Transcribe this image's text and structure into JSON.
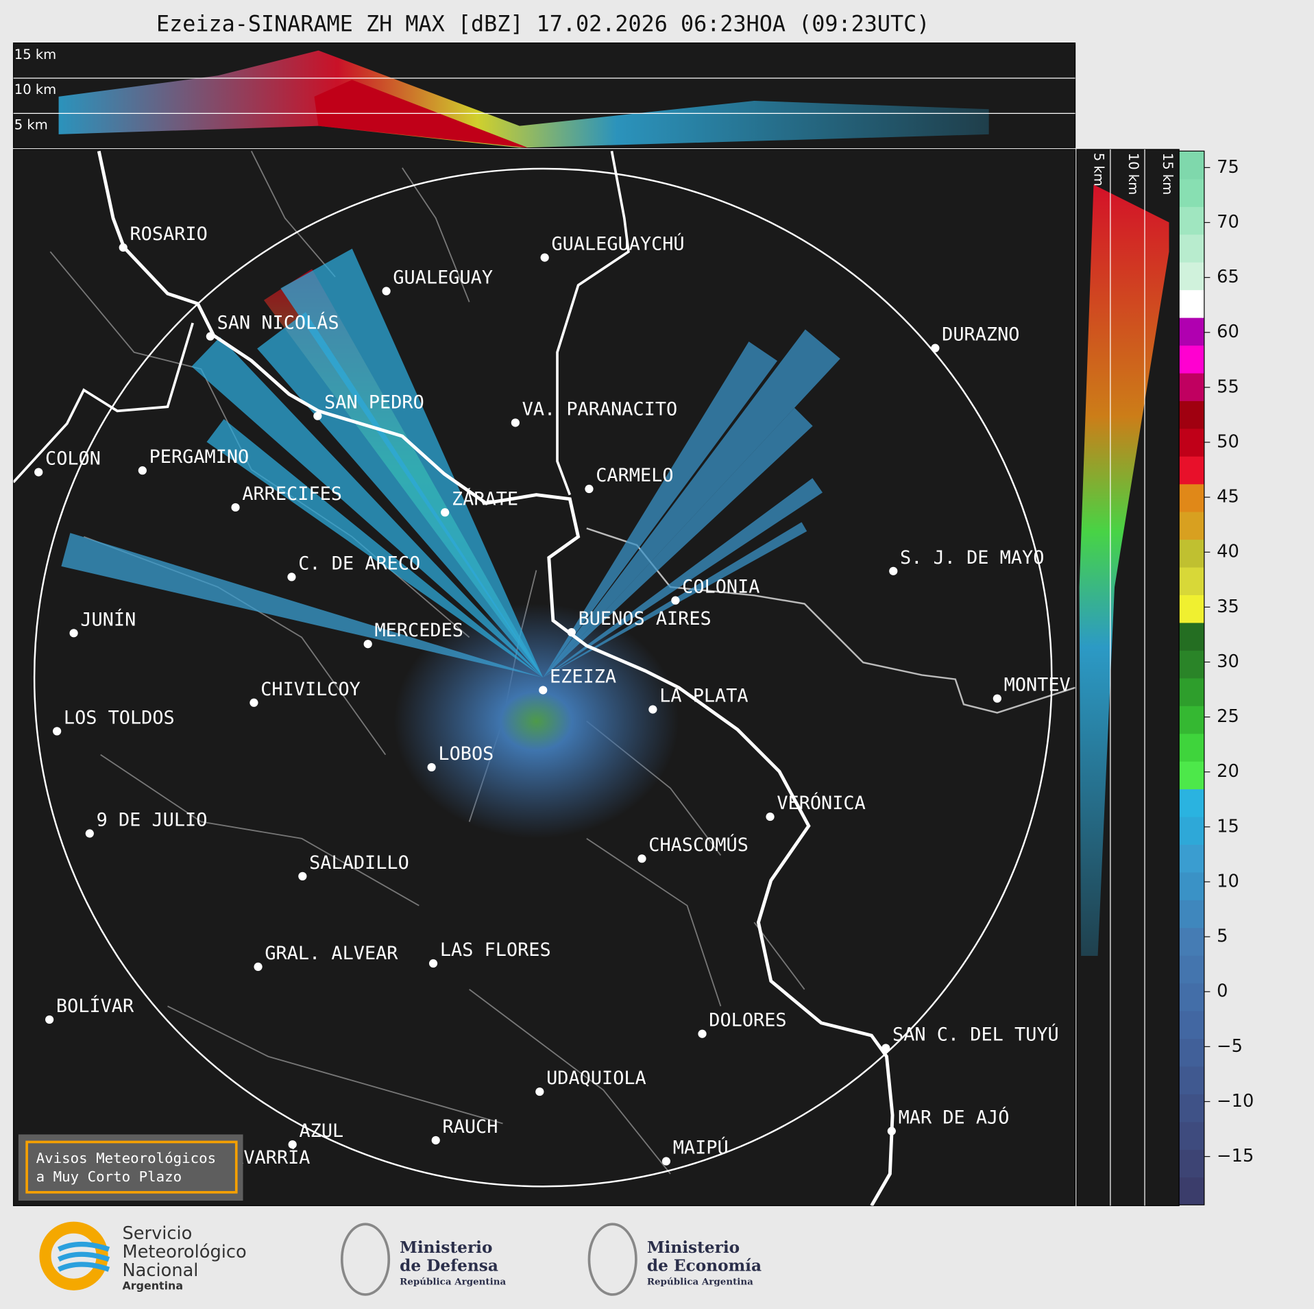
{
  "header": {
    "title": "Ezeiza-SINARAME ZH MAX [dBZ] 17.02.2026 06:23HOA (09:23UTC)"
  },
  "top_panel": {
    "labels": [
      "15 km",
      "10 km",
      "5 km"
    ]
  },
  "side_panel": {
    "labels": [
      "5 km",
      "10 km",
      "15 km"
    ]
  },
  "map": {
    "cities": [
      "ROSARIO",
      "GUALEGUAYCHÚ",
      "GUALEGUAY",
      "SAN NICOLÁS",
      "DURAZNO",
      "SAN PEDRO",
      "VA. PARANACITO",
      "COLON",
      "PERGAMINO",
      "CARMELO",
      "ARRECIFES",
      "ZÁRATE",
      "C. DE ARECO",
      "S. J. DE MAYO",
      "COLONIA",
      "BUENOS AIRES",
      "JUNÍN",
      "MERCEDES",
      "EZEIZA",
      "MONTEV",
      "CHIVILCOY",
      "LA PLATA",
      "LOS TOLDOS",
      "LOBOS",
      "VERÓNICA",
      "9 DE JULIO",
      "CHASCOMÚS",
      "SALADILLO",
      "GRAL. ALVEAR",
      "LAS FLORES",
      "BOLÍVAR",
      "DOLORES",
      "SAN C. DEL TUYÚ",
      "UDAQUIOLA",
      "MAR DE AJÓ",
      "RAUCH",
      "AZUL",
      "OLAVARRÍA",
      "MAIPÚ"
    ]
  },
  "warning_box": {
    "lines": [
      "Avisos Meteorológicos",
      "a Muy Corto Plazo"
    ]
  },
  "colorbar": {
    "range": [
      -19.4,
      76.5
    ],
    "ticks": [
      75,
      70,
      65,
      60,
      55,
      50,
      45,
      40,
      35,
      30,
      25,
      20,
      15,
      10,
      5,
      0,
      {
        "value": -5,
        "label": "−5"
      },
      {
        "value": -10,
        "label": "−10"
      },
      {
        "value": -15,
        "label": "−15"
      }
    ],
    "colors": [
      "#3b3d6b",
      "#3d4474",
      "#3e4b7e",
      "#3f5287",
      "#405990",
      "#416099",
      "#4267a2",
      "#436ea8",
      "#4475ae",
      "#457cb4",
      "#3f87bd",
      "#3a92c6",
      "#3a9dd0",
      "#2ea8d8",
      "#2ab3e0",
      "#4de84a",
      "#3fd43c",
      "#35b832",
      "#2e9e2c",
      "#2a8428",
      "#246e22",
      "#f0f030",
      "#d8d838",
      "#c0c030",
      "#d8a020",
      "#e08818",
      "#e8102a",
      "#c00018",
      "#a00010",
      "#c00060",
      "#ff00d0",
      "#b000b0",
      "#ffffff",
      "#d0f2dc",
      "#b8ecce",
      "#a0e6c0",
      "#88dfb2",
      "#7fd8ac"
    ]
  },
  "footer": {
    "smn": [
      "Servicio",
      "Meteorológico",
      "Nacional",
      "Argentina"
    ],
    "defensa": [
      "Ministerio",
      "de Defensa",
      "República Argentina"
    ],
    "economia": [
      "Ministerio",
      "de Economía",
      "República Argentina"
    ]
  }
}
